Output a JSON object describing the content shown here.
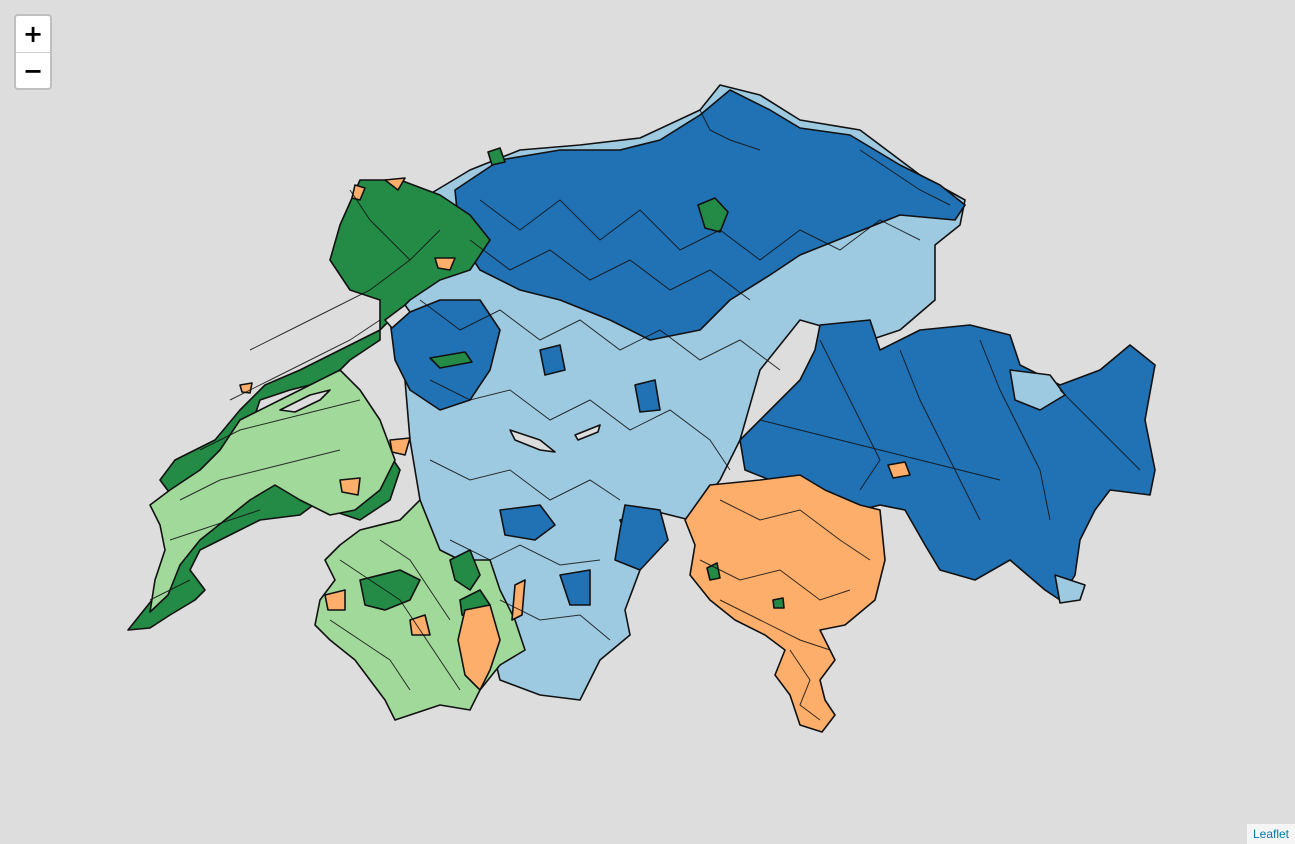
{
  "zoom": {
    "in_label": "+",
    "out_label": "−"
  },
  "attribution": {
    "text": "Leaflet"
  },
  "colors": {
    "background": "#dddddd",
    "dark_green": "#238b45",
    "light_green": "#a1d99b",
    "light_blue": "#9ecae1",
    "dark_blue": "#2171b5",
    "orange": "#fdae6b",
    "border": "#000000"
  }
}
